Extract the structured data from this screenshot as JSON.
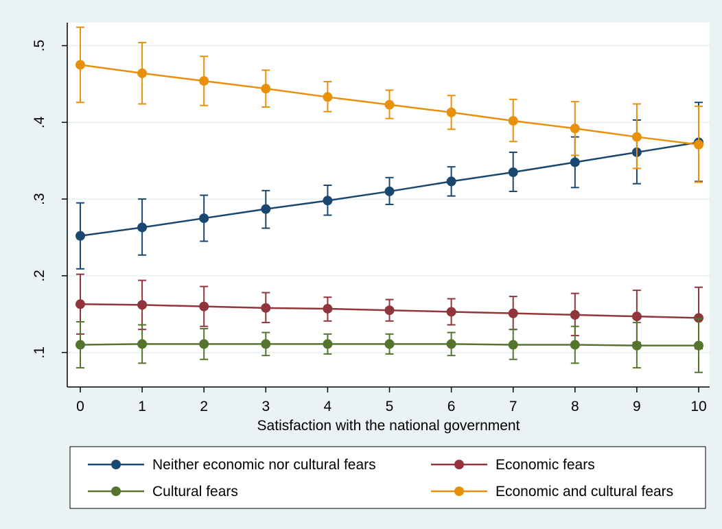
{
  "chart_data": {
    "type": "line",
    "xlabel": "Satisfaction with the national government",
    "ylabel": "",
    "x": [
      0,
      1,
      2,
      3,
      4,
      5,
      6,
      7,
      8,
      9,
      10
    ],
    "x_ticks": [
      "0",
      "1",
      "2",
      "3",
      "4",
      "5",
      "6",
      "7",
      "8",
      "9",
      "10"
    ],
    "y_ticks": [
      {
        "value": 0.1,
        "label": ".1"
      },
      {
        "value": 0.2,
        "label": ".2"
      },
      {
        "value": 0.3,
        "label": ".3"
      },
      {
        "value": 0.4,
        "label": ".4"
      },
      {
        "value": 0.5,
        "label": ".5"
      }
    ],
    "xlim": [
      0,
      10
    ],
    "ylim": [
      0.055,
      0.53
    ],
    "grid": "horizontal",
    "legend_position": "bottom",
    "series": [
      {
        "name": "Neither economic nor cultural fears",
        "color": "#1a476f",
        "values": [
          0.252,
          0.263,
          0.275,
          0.287,
          0.298,
          0.31,
          0.323,
          0.335,
          0.348,
          0.361,
          0.374
        ],
        "lower": [
          0.209,
          0.227,
          0.245,
          0.262,
          0.279,
          0.293,
          0.304,
          0.31,
          0.315,
          0.32,
          0.323
        ],
        "upper": [
          0.295,
          0.3,
          0.305,
          0.311,
          0.318,
          0.328,
          0.342,
          0.361,
          0.381,
          0.403,
          0.426
        ]
      },
      {
        "name": "Economic fears",
        "color": "#90353b",
        "values": [
          0.163,
          0.162,
          0.16,
          0.158,
          0.157,
          0.155,
          0.153,
          0.151,
          0.149,
          0.147,
          0.145
        ],
        "lower": [
          0.124,
          0.13,
          0.134,
          0.139,
          0.141,
          0.141,
          0.136,
          0.13,
          0.122,
          0.113,
          0.105
        ],
        "upper": [
          0.202,
          0.194,
          0.186,
          0.178,
          0.172,
          0.169,
          0.17,
          0.173,
          0.177,
          0.181,
          0.185
        ]
      },
      {
        "name": "Cultural fears",
        "color": "#55752f",
        "values": [
          0.11,
          0.111,
          0.111,
          0.111,
          0.111,
          0.111,
          0.111,
          0.11,
          0.11,
          0.109,
          0.109
        ],
        "lower": [
          0.08,
          0.086,
          0.091,
          0.096,
          0.098,
          0.098,
          0.096,
          0.091,
          0.086,
          0.08,
          0.074
        ],
        "upper": [
          0.14,
          0.136,
          0.131,
          0.126,
          0.124,
          0.124,
          0.126,
          0.13,
          0.134,
          0.139,
          0.144
        ]
      },
      {
        "name": "Economic and cultural fears",
        "color": "#e8900a",
        "values": [
          0.475,
          0.464,
          0.454,
          0.444,
          0.433,
          0.423,
          0.413,
          0.402,
          0.392,
          0.381,
          0.371
        ],
        "lower": [
          0.426,
          0.424,
          0.422,
          0.42,
          0.414,
          0.405,
          0.391,
          0.375,
          0.357,
          0.34,
          0.322
        ],
        "upper": [
          0.524,
          0.504,
          0.486,
          0.468,
          0.453,
          0.442,
          0.435,
          0.43,
          0.427,
          0.424,
          0.421
        ]
      }
    ]
  }
}
